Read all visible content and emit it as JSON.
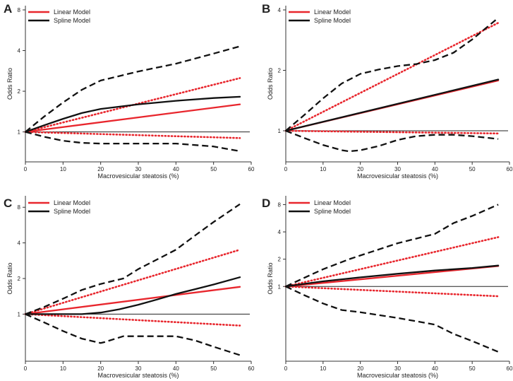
{
  "figure": {
    "description_note": "Four panels of odds ratio vs macrovesicular steatosis curves"
  },
  "legend_labels": [
    "Linear Model",
    "Spline Model"
  ],
  "chart_data": [
    {
      "panel": "A",
      "type": "line",
      "xlabel": "Macrovesicular steatosis (%)",
      "ylabel": "Odds Ratio",
      "xlim": [
        0,
        60
      ],
      "ylim": [
        0.6,
        8.6
      ],
      "y_scale": "log",
      "xticks": [
        0,
        10,
        20,
        30,
        40,
        50,
        60
      ],
      "yticks": [
        1,
        2,
        4,
        8
      ],
      "reference_line": 1,
      "legend": {
        "position": "top-left",
        "entries": [
          "Linear Model",
          "Spline Model"
        ]
      },
      "series": [
        {
          "name": "Linear Model",
          "role": "estimate",
          "color": "#e8262d",
          "style": "solid",
          "x": [
            0,
            57
          ],
          "y": [
            1,
            1.6
          ]
        },
        {
          "name": "Linear Model upper 95% CI",
          "role": "ci",
          "color": "#e8262d",
          "style": "dotted",
          "x": [
            0,
            57
          ],
          "y": [
            1,
            2.5
          ]
        },
        {
          "name": "Linear Model lower 95% CI",
          "role": "ci",
          "color": "#e8262d",
          "style": "dotted",
          "x": [
            0,
            57
          ],
          "y": [
            1,
            0.9
          ]
        },
        {
          "name": "Spline Model",
          "role": "estimate",
          "color": "#111111",
          "style": "solid",
          "x": [
            0,
            5,
            10,
            15,
            20,
            30,
            40,
            50,
            57
          ],
          "y": [
            1,
            1.12,
            1.25,
            1.38,
            1.48,
            1.6,
            1.7,
            1.78,
            1.82
          ]
        },
        {
          "name": "Spline Model upper 95% CI",
          "role": "ci",
          "color": "#111111",
          "style": "dashed",
          "x": [
            0,
            5,
            10,
            15,
            20,
            30,
            40,
            50,
            57
          ],
          "y": [
            1,
            1.3,
            1.65,
            2.05,
            2.4,
            2.8,
            3.2,
            3.8,
            4.3
          ]
        },
        {
          "name": "Spline Model lower 95% CI",
          "role": "ci",
          "color": "#111111",
          "style": "dashed",
          "x": [
            0,
            5,
            10,
            15,
            20,
            30,
            40,
            50,
            57
          ],
          "y": [
            1,
            0.92,
            0.86,
            0.83,
            0.82,
            0.82,
            0.82,
            0.78,
            0.72
          ]
        }
      ]
    },
    {
      "panel": "B",
      "type": "line",
      "xlabel": "Macrovesicular steatosis (%)",
      "ylabel": "Odds Ratio",
      "xlim": [
        0,
        60
      ],
      "ylim": [
        0.7,
        4.2
      ],
      "y_scale": "log",
      "xticks": [
        0,
        10,
        20,
        30,
        40,
        50,
        60
      ],
      "yticks": [
        1,
        2,
        4
      ],
      "reference_line": 1,
      "legend": {
        "position": "top-right",
        "entries": [
          "Linear Model",
          "Spline Model"
        ]
      },
      "series": [
        {
          "name": "Linear Model",
          "role": "estimate",
          "color": "#e8262d",
          "style": "solid",
          "x": [
            0,
            57
          ],
          "y": [
            1,
            1.78
          ]
        },
        {
          "name": "Linear Model upper 95% CI",
          "role": "ci",
          "color": "#e8262d",
          "style": "dotted",
          "x": [
            0,
            57
          ],
          "y": [
            1,
            3.45
          ]
        },
        {
          "name": "Linear Model lower 95% CI",
          "role": "ci",
          "color": "#e8262d",
          "style": "dotted",
          "x": [
            0,
            57
          ],
          "y": [
            1,
            0.97
          ]
        },
        {
          "name": "Spline Model",
          "role": "estimate",
          "color": "#111111",
          "style": "solid",
          "x": [
            0,
            57
          ],
          "y": [
            1,
            1.8
          ]
        },
        {
          "name": "Spline Model upper 95% CI",
          "role": "ci",
          "color": "#111111",
          "style": "dashed",
          "x": [
            0,
            5,
            10,
            15,
            20,
            25,
            30,
            35,
            40,
            45,
            50,
            57
          ],
          "y": [
            1,
            1.2,
            1.45,
            1.72,
            1.92,
            2.02,
            2.1,
            2.15,
            2.25,
            2.45,
            2.85,
            3.65
          ]
        },
        {
          "name": "Spline Model lower 95% CI",
          "role": "ci",
          "color": "#111111",
          "style": "dashed",
          "x": [
            0,
            5,
            10,
            15,
            17,
            20,
            25,
            30,
            35,
            40,
            45,
            50,
            57
          ],
          "y": [
            1,
            0.92,
            0.85,
            0.8,
            0.79,
            0.8,
            0.84,
            0.9,
            0.94,
            0.955,
            0.955,
            0.94,
            0.91
          ]
        }
      ]
    },
    {
      "panel": "C",
      "type": "line",
      "xlabel": "Macrovesicular steatosis (%)",
      "ylabel": "Odds Ratio",
      "xlim": [
        0,
        60
      ],
      "ylim": [
        0.4,
        10
      ],
      "y_scale": "log",
      "xticks": [
        0,
        10,
        20,
        30,
        40,
        50,
        60
      ],
      "yticks": [
        1,
        2,
        4,
        8
      ],
      "reference_line": 1,
      "legend": {
        "position": "top-left",
        "entries": [
          "Linear Model",
          "Spline Model"
        ]
      },
      "series": [
        {
          "name": "Linear Model",
          "role": "estimate",
          "color": "#e8262d",
          "style": "solid",
          "x": [
            0,
            57
          ],
          "y": [
            1,
            1.7
          ]
        },
        {
          "name": "Linear Model upper 95% CI",
          "role": "ci",
          "color": "#e8262d",
          "style": "dotted",
          "x": [
            0,
            57
          ],
          "y": [
            1,
            3.5
          ]
        },
        {
          "name": "Linear Model lower 95% CI",
          "role": "ci",
          "color": "#e8262d",
          "style": "dotted",
          "x": [
            0,
            57
          ],
          "y": [
            1,
            0.8
          ]
        },
        {
          "name": "Spline Model",
          "role": "estimate",
          "color": "#111111",
          "style": "solid",
          "x": [
            0,
            5,
            10,
            15,
            20,
            25,
            30,
            35,
            40,
            45,
            50,
            57
          ],
          "y": [
            1,
            1.0,
            1.0,
            1.0,
            1.03,
            1.1,
            1.2,
            1.33,
            1.48,
            1.62,
            1.78,
            2.05
          ]
        },
        {
          "name": "Spline Model upper 95% CI",
          "role": "ci",
          "color": "#111111",
          "style": "dashed",
          "x": [
            0,
            5,
            10,
            15,
            20,
            26,
            30,
            35,
            40,
            45,
            50,
            57
          ],
          "y": [
            1,
            1.15,
            1.35,
            1.6,
            1.8,
            2.0,
            2.4,
            2.9,
            3.5,
            4.6,
            6.0,
            8.5
          ]
        },
        {
          "name": "Spline Model lower 95% CI",
          "role": "ci",
          "color": "#111111",
          "style": "dashed",
          "x": [
            0,
            5,
            10,
            15,
            20,
            21,
            26,
            30,
            35,
            40,
            45,
            50,
            57
          ],
          "y": [
            1,
            0.85,
            0.72,
            0.62,
            0.57,
            0.58,
            0.65,
            0.65,
            0.65,
            0.65,
            0.6,
            0.53,
            0.45
          ]
        }
      ]
    },
    {
      "panel": "D",
      "type": "line",
      "xlabel": "Macrovesicular steatosis (%)",
      "ylabel": "Odds Ratio",
      "xlim": [
        0,
        60
      ],
      "ylim": [
        0.15,
        10
      ],
      "y_scale": "log",
      "xticks": [
        0,
        10,
        20,
        30,
        40,
        50,
        60
      ],
      "yticks": [
        1,
        2,
        4,
        8
      ],
      "reference_line": 1,
      "legend": {
        "position": "top-left",
        "entries": [
          "Linear Model",
          "Spline Model"
        ]
      },
      "series": [
        {
          "name": "Linear Model",
          "role": "estimate",
          "color": "#e8262d",
          "style": "solid",
          "x": [
            0,
            57
          ],
          "y": [
            1,
            1.68
          ]
        },
        {
          "name": "Linear Model upper 95% CI",
          "role": "ci",
          "color": "#e8262d",
          "style": "dotted",
          "x": [
            0,
            57
          ],
          "y": [
            1,
            3.5
          ]
        },
        {
          "name": "Linear Model lower 95% CI",
          "role": "ci",
          "color": "#e8262d",
          "style": "dotted",
          "x": [
            0,
            57
          ],
          "y": [
            1,
            0.78
          ]
        },
        {
          "name": "Spline Model",
          "role": "estimate",
          "color": "#111111",
          "style": "solid",
          "x": [
            0,
            5,
            10,
            20,
            30,
            40,
            50,
            57
          ],
          "y": [
            1,
            1.07,
            1.14,
            1.26,
            1.38,
            1.5,
            1.6,
            1.7
          ]
        },
        {
          "name": "Spline Model upper 95% CI",
          "role": "ci",
          "color": "#111111",
          "style": "dashed",
          "x": [
            0,
            5,
            10,
            17,
            20,
            30,
            40,
            45,
            50,
            57
          ],
          "y": [
            1,
            1.25,
            1.55,
            2.0,
            2.2,
            3.0,
            3.8,
            5.0,
            6.0,
            8.0
          ]
        },
        {
          "name": "Spline Model lower 95% CI",
          "role": "ci",
          "color": "#111111",
          "style": "dashed",
          "x": [
            0,
            5,
            10,
            15,
            20,
            30,
            40,
            45,
            50,
            57
          ],
          "y": [
            1,
            0.8,
            0.65,
            0.55,
            0.52,
            0.45,
            0.38,
            0.3,
            0.25,
            0.19
          ]
        }
      ]
    }
  ]
}
